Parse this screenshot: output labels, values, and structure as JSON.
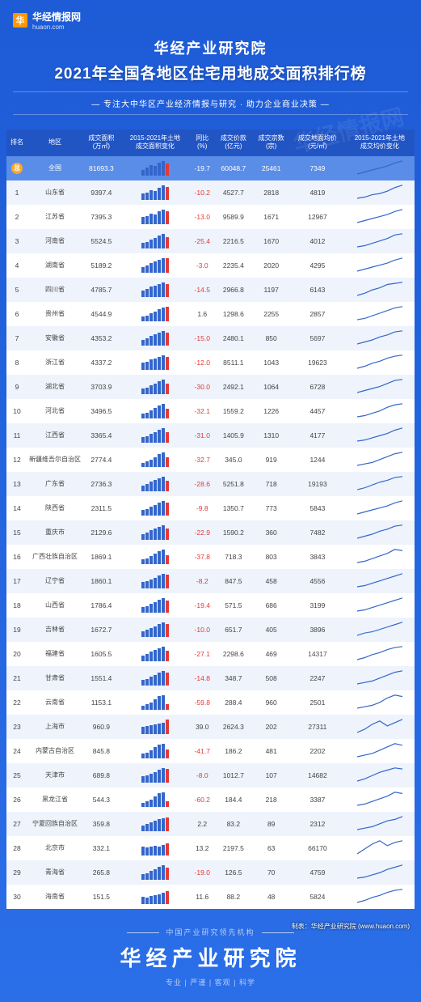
{
  "logo": {
    "icon": "华",
    "main": "华经情报网",
    "sub": "huaon.com"
  },
  "title1": "华经产业研究院",
  "title2": "2021年全国各地区住宅用地成交面积排行榜",
  "subtitle": "— 专注大中华区产业经济情报与研究 · 助力企业商业决策 —",
  "watermark": "华经情报网",
  "columns": [
    "排名",
    "地区",
    "成交面积\n(万㎡)",
    "2015-2021年土地\n成交面积变化",
    "同比\n(%)",
    "成交价款\n(亿元)",
    "成交宗数\n(宗)",
    "成交地面均价\n(元/㎡)",
    "2015-2021年土地\n成交均价变化"
  ],
  "bar_colors": {
    "normal": "#3366cc",
    "highlight": "#e53935"
  },
  "spark_color": "#3366cc",
  "rows": [
    {
      "rank": "总",
      "region": "全国",
      "area": "81693.3",
      "bars": [
        40,
        55,
        70,
        65,
        85,
        100,
        80
      ],
      "yoy": "-19.7",
      "yoy_neg": true,
      "price": "60048.7",
      "count": "25461",
      "avg": "7349",
      "spark": [
        2,
        4,
        6,
        8,
        10,
        13,
        15
      ]
    },
    {
      "rank": "1",
      "region": "山东省",
      "area": "9397.4",
      "bars": [
        45,
        50,
        65,
        60,
        80,
        100,
        90
      ],
      "yoy": "-10.2",
      "yoy_neg": true,
      "price": "4527.7",
      "count": "2818",
      "avg": "4819",
      "spark": [
        3,
        4,
        6,
        7,
        9,
        12,
        14
      ]
    },
    {
      "rank": "2",
      "region": "江苏省",
      "area": "7395.3",
      "bars": [
        50,
        55,
        70,
        65,
        85,
        100,
        87
      ],
      "yoy": "-13.0",
      "yoy_neg": true,
      "price": "9589.9",
      "count": "1671",
      "avg": "12967",
      "spark": [
        3,
        5,
        7,
        9,
        11,
        14,
        16
      ]
    },
    {
      "rank": "3",
      "region": "河南省",
      "area": "5524.5",
      "bars": [
        35,
        45,
        60,
        70,
        90,
        100,
        75
      ],
      "yoy": "-25.4",
      "yoy_neg": true,
      "price": "2216.5",
      "count": "1670",
      "avg": "4012",
      "spark": [
        2,
        3,
        5,
        7,
        9,
        12,
        13
      ]
    },
    {
      "rank": "4",
      "region": "湖南省",
      "area": "5189.2",
      "bars": [
        40,
        50,
        65,
        75,
        85,
        100,
        97
      ],
      "yoy": "-3.0",
      "yoy_neg": true,
      "price": "2235.4",
      "count": "2020",
      "avg": "4295",
      "spark": [
        2,
        4,
        6,
        8,
        10,
        13,
        15
      ]
    },
    {
      "rank": "5",
      "region": "四川省",
      "area": "4785.7",
      "bars": [
        45,
        55,
        70,
        75,
        90,
        100,
        85
      ],
      "yoy": "-14.5",
      "yoy_neg": true,
      "price": "2966.8",
      "count": "1197",
      "avg": "6143",
      "spark": [
        3,
        5,
        8,
        10,
        13,
        14,
        15
      ]
    },
    {
      "rank": "6",
      "region": "贵州省",
      "area": "4544.9",
      "bars": [
        30,
        40,
        55,
        65,
        80,
        95,
        97
      ],
      "yoy": "1.6",
      "yoy_neg": false,
      "price": "1298.6",
      "count": "2255",
      "avg": "2857",
      "spark": [
        2,
        3,
        5,
        7,
        9,
        11,
        12
      ]
    },
    {
      "rank": "7",
      "region": "安徽省",
      "area": "4353.2",
      "bars": [
        40,
        50,
        65,
        75,
        90,
        100,
        85
      ],
      "yoy": "-15.0",
      "yoy_neg": true,
      "price": "2480.1",
      "count": "850",
      "avg": "5697",
      "spark": [
        2,
        4,
        6,
        9,
        11,
        14,
        15
      ]
    },
    {
      "rank": "8",
      "region": "浙江省",
      "area": "4337.2",
      "bars": [
        50,
        55,
        70,
        75,
        85,
        100,
        88
      ],
      "yoy": "-12.0",
      "yoy_neg": true,
      "price": "8511.1",
      "count": "1043",
      "avg": "19623",
      "spark": [
        4,
        6,
        9,
        11,
        14,
        16,
        17
      ]
    },
    {
      "rank": "9",
      "region": "湖北省",
      "area": "3703.9",
      "bars": [
        35,
        45,
        60,
        70,
        85,
        100,
        70
      ],
      "yoy": "-30.0",
      "yoy_neg": true,
      "price": "2492.1",
      "count": "1064",
      "avg": "6728",
      "spark": [
        2,
        4,
        6,
        8,
        11,
        14,
        15
      ]
    },
    {
      "rank": "10",
      "region": "河北省",
      "area": "3496.5",
      "bars": [
        30,
        40,
        55,
        70,
        90,
        100,
        68
      ],
      "yoy": "-32.1",
      "yoy_neg": true,
      "price": "1559.2",
      "count": "1226",
      "avg": "4457",
      "spark": [
        2,
        3,
        5,
        7,
        10,
        12,
        13
      ]
    },
    {
      "rank": "11",
      "region": "江西省",
      "area": "3365.4",
      "bars": [
        35,
        45,
        60,
        70,
        85,
        100,
        69
      ],
      "yoy": "-31.0",
      "yoy_neg": true,
      "price": "1405.9",
      "count": "1310",
      "avg": "4177",
      "spark": [
        2,
        3,
        5,
        7,
        9,
        12,
        14
      ]
    },
    {
      "rank": "12",
      "region": "新疆维吾尔自治区",
      "area": "2774.4",
      "bars": [
        25,
        35,
        50,
        65,
        85,
        100,
        67
      ],
      "yoy": "-32.7",
      "yoy_neg": true,
      "price": "345.0",
      "count": "919",
      "avg": "1244",
      "spark": [
        2,
        3,
        4,
        6,
        8,
        10,
        11
      ]
    },
    {
      "rank": "13",
      "region": "广东省",
      "area": "2736.3",
      "bars": [
        40,
        50,
        65,
        75,
        90,
        100,
        71
      ],
      "yoy": "-28.6",
      "yoy_neg": true,
      "price": "5251.8",
      "count": "718",
      "avg": "19193",
      "spark": [
        4,
        6,
        9,
        12,
        14,
        17,
        18
      ]
    },
    {
      "rank": "14",
      "region": "陕西省",
      "area": "2311.5",
      "bars": [
        35,
        45,
        60,
        70,
        85,
        100,
        90
      ],
      "yoy": "-9.8",
      "yoy_neg": true,
      "price": "1350.7",
      "count": "773",
      "avg": "5843",
      "spark": [
        2,
        4,
        6,
        8,
        10,
        13,
        15
      ]
    },
    {
      "rank": "15",
      "region": "重庆市",
      "area": "2129.6",
      "bars": [
        40,
        50,
        65,
        75,
        90,
        100,
        77
      ],
      "yoy": "-22.9",
      "yoy_neg": true,
      "price": "1590.2",
      "count": "360",
      "avg": "7482",
      "spark": [
        3,
        5,
        7,
        10,
        12,
        15,
        16
      ]
    },
    {
      "rank": "16",
      "region": "广西壮族自治区",
      "area": "1869.1",
      "bars": [
        30,
        40,
        55,
        70,
        90,
        100,
        62
      ],
      "yoy": "-37.8",
      "yoy_neg": true,
      "price": "718.3",
      "count": "803",
      "avg": "3843",
      "spark": [
        2,
        3,
        5,
        7,
        9,
        12,
        11
      ]
    },
    {
      "rank": "17",
      "region": "辽宁省",
      "area": "1860.1",
      "bars": [
        45,
        50,
        60,
        70,
        85,
        100,
        92
      ],
      "yoy": "-8.2",
      "yoy_neg": true,
      "price": "847.5",
      "count": "458",
      "avg": "4556",
      "spark": [
        3,
        4,
        6,
        8,
        10,
        12,
        14
      ]
    },
    {
      "rank": "18",
      "region": "山西省",
      "area": "1786.4",
      "bars": [
        35,
        45,
        60,
        70,
        85,
        100,
        81
      ],
      "yoy": "-19.4",
      "yoy_neg": true,
      "price": "571.5",
      "count": "686",
      "avg": "3199",
      "spark": [
        2,
        3,
        5,
        7,
        9,
        11,
        13
      ]
    },
    {
      "rank": "19",
      "region": "吉林省",
      "area": "1672.7",
      "bars": [
        40,
        50,
        60,
        70,
        85,
        100,
        90
      ],
      "yoy": "-10.0",
      "yoy_neg": true,
      "price": "651.7",
      "count": "405",
      "avg": "3896",
      "spark": [
        2,
        4,
        5,
        7,
        9,
        11,
        13
      ]
    },
    {
      "rank": "20",
      "region": "福建省",
      "area": "1605.5",
      "bars": [
        40,
        50,
        65,
        75,
        90,
        100,
        73
      ],
      "yoy": "-27.1",
      "yoy_neg": true,
      "price": "2298.6",
      "count": "469",
      "avg": "14317",
      "spark": [
        4,
        6,
        9,
        11,
        14,
        16,
        17
      ]
    },
    {
      "rank": "21",
      "region": "甘肃省",
      "area": "1551.4",
      "bars": [
        35,
        45,
        60,
        70,
        85,
        100,
        85
      ],
      "yoy": "-14.8",
      "yoy_neg": true,
      "price": "348.7",
      "count": "508",
      "avg": "2247",
      "spark": [
        2,
        3,
        4,
        6,
        8,
        10,
        11
      ]
    },
    {
      "rank": "22",
      "region": "云南省",
      "area": "1153.1",
      "bars": [
        25,
        35,
        50,
        70,
        95,
        100,
        40
      ],
      "yoy": "-59.8",
      "yoy_neg": true,
      "price": "288.4",
      "count": "960",
      "avg": "2501",
      "spark": [
        2,
        3,
        4,
        6,
        9,
        11,
        10
      ]
    },
    {
      "rank": "23",
      "region": "上海市",
      "area": "960.9",
      "bars": [
        50,
        55,
        60,
        65,
        70,
        75,
        100
      ],
      "yoy": "39.0",
      "yoy_neg": false,
      "price": "2624.3",
      "count": "202",
      "avg": "27311",
      "spark": [
        8,
        10,
        13,
        15,
        12,
        14,
        16
      ]
    },
    {
      "rank": "24",
      "region": "内蒙古自治区",
      "area": "845.8",
      "bars": [
        30,
        40,
        55,
        75,
        95,
        100,
        58
      ],
      "yoy": "-41.7",
      "yoy_neg": true,
      "price": "186.2",
      "count": "481",
      "avg": "2202",
      "spark": [
        2,
        3,
        4,
        6,
        8,
        10,
        9
      ]
    },
    {
      "rank": "25",
      "region": "天津市",
      "area": "689.8",
      "bars": [
        45,
        50,
        60,
        70,
        85,
        100,
        92
      ],
      "yoy": "-8.0",
      "yoy_neg": true,
      "price": "1012.7",
      "count": "107",
      "avg": "14682",
      "spark": [
        4,
        6,
        9,
        12,
        14,
        16,
        15
      ]
    },
    {
      "rank": "26",
      "region": "黑龙江省",
      "area": "544.3",
      "bars": [
        25,
        35,
        50,
        70,
        95,
        100,
        40
      ],
      "yoy": "-60.2",
      "yoy_neg": true,
      "price": "184.4",
      "count": "218",
      "avg": "3387",
      "spark": [
        2,
        3,
        5,
        7,
        9,
        12,
        11
      ]
    },
    {
      "rank": "27",
      "region": "宁夏回族自治区",
      "area": "359.8",
      "bars": [
        40,
        50,
        60,
        70,
        80,
        90,
        92
      ],
      "yoy": "2.2",
      "yoy_neg": false,
      "price": "83.2",
      "count": "89",
      "avg": "2312",
      "spark": [
        2,
        3,
        4,
        6,
        8,
        9,
        11
      ]
    },
    {
      "rank": "28",
      "region": "北京市",
      "area": "332.1",
      "bars": [
        60,
        55,
        60,
        65,
        60,
        70,
        80
      ],
      "yoy": "13.2",
      "yoy_neg": false,
      "price": "2197.5",
      "count": "63",
      "avg": "66170",
      "spark": [
        10,
        13,
        16,
        18,
        15,
        17,
        18
      ]
    },
    {
      "rank": "29",
      "region": "青海省",
      "area": "265.8",
      "bars": [
        35,
        45,
        60,
        70,
        85,
        100,
        81
      ],
      "yoy": "-19.0",
      "yoy_neg": true,
      "price": "126.5",
      "count": "70",
      "avg": "4759",
      "spark": [
        2,
        3,
        5,
        7,
        10,
        12,
        14
      ]
    },
    {
      "rank": "30",
      "region": "海南省",
      "area": "151.5",
      "bars": [
        50,
        45,
        55,
        60,
        65,
        75,
        85
      ],
      "yoy": "11.6",
      "yoy_neg": false,
      "price": "88.2",
      "count": "48",
      "avg": "5824",
      "spark": [
        3,
        5,
        8,
        10,
        13,
        15,
        16
      ]
    }
  ],
  "credit": "制表：华经产业研究院 (www.huaon.com)",
  "footer": {
    "sub": "中国产业研究领先机构",
    "main": "华经产业研究院",
    "tags": "专业 | 严谨 | 客观 | 科学"
  }
}
